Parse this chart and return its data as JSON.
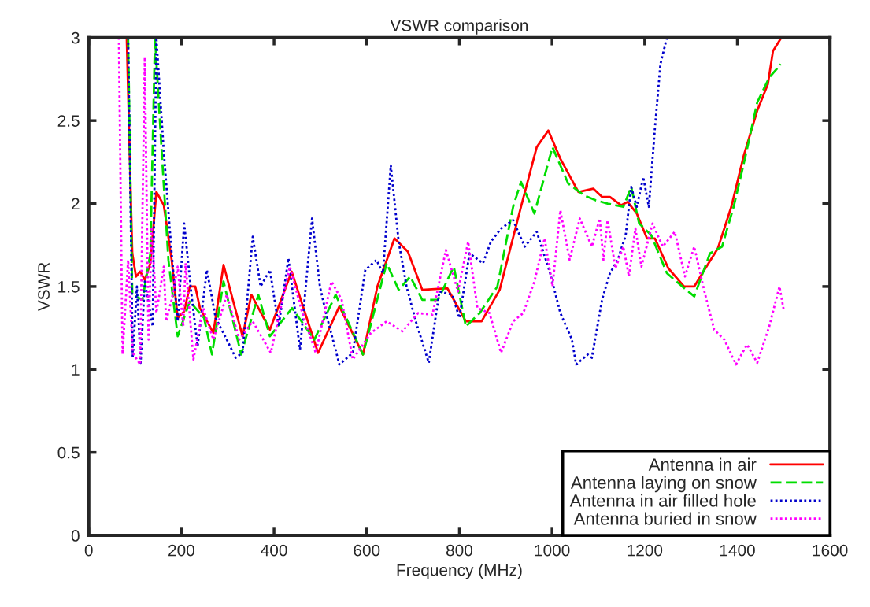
{
  "chart_data": {
    "type": "line",
    "title": "VSWR comparison",
    "xlabel": "Frequency (MHz)",
    "ylabel": "VSWR",
    "xlim": [
      0,
      1600
    ],
    "xticks": [
      0,
      200,
      400,
      600,
      800,
      1000,
      1200,
      1400,
      1600
    ],
    "ylim": [
      0,
      3
    ],
    "yticks": [
      0,
      0.5,
      1,
      1.5,
      2,
      2.5,
      3
    ],
    "grid": false,
    "legend": "bottom right",
    "series": [
      {
        "name": "Antenna in air",
        "color": "#ff0000",
        "line_style": "solid",
        "x": [
          82,
          94,
          102,
          111,
          121,
          133,
          146,
          162,
          179,
          192,
          206,
          218,
          230,
          240,
          269,
          291,
          332,
          351,
          391,
          438,
          495,
          541,
          592,
          623,
          660,
          689,
          720,
          774,
          814,
          848,
          887,
          933,
          967,
          992,
          1018,
          1057,
          1089,
          1108,
          1125,
          1149,
          1163,
          1183,
          1205,
          1222,
          1251,
          1285,
          1307,
          1329,
          1358,
          1387,
          1414,
          1443,
          1466,
          1477,
          1495
        ],
        "values": [
          3.0,
          1.7,
          1.56,
          1.59,
          1.54,
          1.64,
          2.07,
          1.99,
          1.66,
          1.31,
          1.35,
          1.5,
          1.5,
          1.37,
          1.22,
          1.63,
          1.2,
          1.45,
          1.24,
          1.59,
          1.1,
          1.38,
          1.09,
          1.5,
          1.79,
          1.71,
          1.48,
          1.49,
          1.29,
          1.29,
          1.48,
          1.98,
          2.34,
          2.44,
          2.27,
          2.07,
          2.09,
          2.04,
          2.04,
          1.99,
          2.01,
          1.94,
          1.79,
          1.79,
          1.61,
          1.5,
          1.5,
          1.6,
          1.73,
          1.98,
          2.29,
          2.56,
          2.72,
          2.92,
          3.0
        ]
      },
      {
        "name": "Antenna laying on snow",
        "color": "#00dd00",
        "line_style": "dashed",
        "x": [
          85,
          94,
          116,
          133,
          143,
          158,
          172,
          192,
          218,
          249,
          266,
          291,
          329,
          366,
          391,
          439,
          487,
          533,
          592,
          643,
          669,
          694,
          720,
          754,
          788,
          814,
          844,
          882,
          916,
          933,
          962,
          1001,
          1035,
          1069,
          1094,
          1120,
          1154,
          1171,
          1188,
          1214,
          1248,
          1273,
          1307,
          1341,
          1367,
          1392,
          1418,
          1443,
          1469,
          1494
        ],
        "values": [
          3.0,
          1.45,
          1.42,
          1.7,
          3.0,
          2.29,
          1.66,
          1.2,
          1.41,
          1.31,
          1.09,
          1.53,
          1.09,
          1.45,
          1.2,
          1.37,
          1.18,
          1.45,
          1.09,
          1.64,
          1.48,
          1.56,
          1.42,
          1.42,
          1.62,
          1.26,
          1.34,
          1.5,
          1.98,
          2.13,
          1.94,
          2.34,
          2.12,
          2.05,
          2.02,
          2.0,
          1.98,
          2.1,
          1.88,
          1.81,
          1.58,
          1.52,
          1.44,
          1.7,
          1.74,
          1.98,
          2.29,
          2.61,
          2.76,
          2.84
        ]
      },
      {
        "name": "Antenna in air filled hole",
        "color": "#0000cc",
        "line_style": "dotted",
        "x": [
          85,
          95,
          104,
          112,
          121,
          138,
          146,
          162,
          179,
          192,
          206,
          221,
          235,
          255,
          274,
          298,
          317,
          332,
          354,
          371,
          391,
          410,
          431,
          456,
          482,
          499,
          512,
          541,
          570,
          597,
          621,
          635,
          652,
          669,
          686,
          706,
          734,
          757,
          785,
          800,
          822,
          851,
          868,
          890,
          916,
          941,
          967,
          996,
          1018,
          1043,
          1052,
          1077,
          1086,
          1108,
          1125,
          1142,
          1159,
          1171,
          1183,
          1197,
          1209,
          1222,
          1234,
          1248
        ],
        "values": [
          3.0,
          1.07,
          1.5,
          1.04,
          1.53,
          1.26,
          3.0,
          2.31,
          1.7,
          1.29,
          1.88,
          1.47,
          1.14,
          1.6,
          1.31,
          1.18,
          1.07,
          1.1,
          1.8,
          1.5,
          1.6,
          1.26,
          1.67,
          1.12,
          1.91,
          1.5,
          1.34,
          1.03,
          1.1,
          1.6,
          1.66,
          1.58,
          2.23,
          1.77,
          1.5,
          1.29,
          1.04,
          1.47,
          1.45,
          1.31,
          1.7,
          1.64,
          1.77,
          1.85,
          1.9,
          1.74,
          1.83,
          1.58,
          1.34,
          1.18,
          1.03,
          1.09,
          1.07,
          1.42,
          1.58,
          1.66,
          1.81,
          2.1,
          1.98,
          2.16,
          1.98,
          2.45,
          2.84,
          3.0
        ]
      },
      {
        "name": "Antenna buried in snow",
        "color": "#ff00ff",
        "line_style": "dotted",
        "x": [
          65,
          73,
          85,
          95,
          111,
          121,
          129,
          136,
          146,
          162,
          167,
          179,
          192,
          204,
          209,
          226,
          247,
          269,
          298,
          325,
          354,
          393,
          434,
          461,
          490,
          524,
          546,
          570,
          609,
          643,
          677,
          711,
          742,
          771,
          797,
          819,
          839,
          865,
          890,
          916,
          938,
          962,
          984,
          1001,
          1018,
          1038,
          1060,
          1086,
          1103,
          1111,
          1120,
          1137,
          1154,
          1166,
          1180,
          1193,
          1217,
          1239,
          1265,
          1287,
          1307,
          1329,
          1350,
          1372,
          1397,
          1421,
          1443,
          1469,
          1491,
          1500
        ],
        "values": [
          3.0,
          1.09,
          1.66,
          1.1,
          1.03,
          2.88,
          1.18,
          1.86,
          1.34,
          1.62,
          1.29,
          1.42,
          1.62,
          1.26,
          1.64,
          1.06,
          1.37,
          1.18,
          1.45,
          1.18,
          1.29,
          1.1,
          1.62,
          1.34,
          1.1,
          1.53,
          1.42,
          1.06,
          1.22,
          1.29,
          1.23,
          1.34,
          1.33,
          1.72,
          1.47,
          1.77,
          1.37,
          1.34,
          1.1,
          1.29,
          1.34,
          1.53,
          1.79,
          1.5,
          1.96,
          1.66,
          1.91,
          1.74,
          1.91,
          1.66,
          1.9,
          1.61,
          1.74,
          1.56,
          1.85,
          1.62,
          1.88,
          1.74,
          1.83,
          1.56,
          1.74,
          1.47,
          1.24,
          1.18,
          1.03,
          1.15,
          1.04,
          1.26,
          1.5,
          1.36
        ]
      }
    ]
  }
}
